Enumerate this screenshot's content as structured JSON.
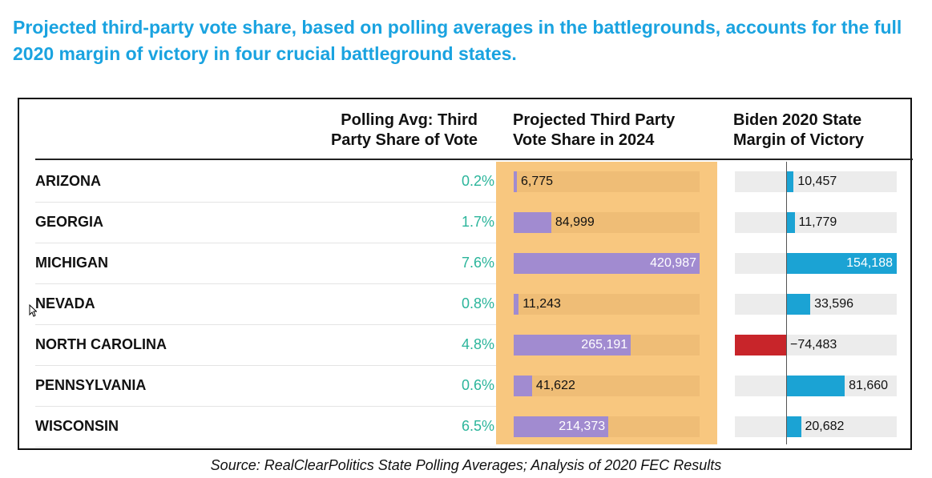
{
  "headline": "Projected third-party vote share, based on polling averages in the battlegrounds, accounts for the full 2020 margin of victory in four crucial battleground states.",
  "source": "Source: RealClearPolitics State Polling Averages; Analysis of 2020 FEC Results",
  "colors": {
    "headline": "#1aa3e0",
    "percent_text": "#2bb59b",
    "projected_bar": "#a18bd0",
    "projected_track": "#efbd76",
    "highlight_column": "#f8c77f",
    "margin_positive": "#1ba3d4",
    "margin_negative": "#c8252a",
    "margin_track": "#ececec"
  },
  "chart_data": {
    "type": "table",
    "columns": [
      {
        "key": "state",
        "label_lines": [
          "",
          ""
        ]
      },
      {
        "key": "polling_avg",
        "label_lines": [
          "Polling Avg: Third",
          "Party Share of Vote"
        ]
      },
      {
        "key": "projected",
        "label_lines": [
          "Projected Third Party",
          "Vote Share in 2024"
        ]
      },
      {
        "key": "margin",
        "label_lines": [
          "Biden 2020 State",
          "Margin of Victory"
        ]
      }
    ],
    "rows": [
      {
        "state": "ARIZONA",
        "polling_avg": "0.2%",
        "projected": 6775,
        "projected_label": "6,775",
        "margin": 10457,
        "margin_label": "10,457"
      },
      {
        "state": "GEORGIA",
        "polling_avg": "1.7%",
        "projected": 84999,
        "projected_label": "84,999",
        "margin": 11779,
        "margin_label": "11,779"
      },
      {
        "state": "MICHIGAN",
        "polling_avg": "7.6%",
        "projected": 420987,
        "projected_label": "420,987",
        "margin": 154188,
        "margin_label": "154,188"
      },
      {
        "state": "NEVADA",
        "polling_avg": "0.8%",
        "projected": 11243,
        "projected_label": "11,243",
        "margin": 33596,
        "margin_label": "33,596"
      },
      {
        "state": "NORTH CAROLINA",
        "polling_avg": "4.8%",
        "projected": 265191,
        "projected_label": "265,191",
        "margin": -74483,
        "margin_label": "−74,483"
      },
      {
        "state": "PENNSYLVANIA",
        "polling_avg": "0.6%",
        "projected": 41622,
        "projected_label": "41,622",
        "margin": 81660,
        "margin_label": "81,660"
      },
      {
        "state": "WISCONSIN",
        "polling_avg": "6.5%",
        "projected": 214373,
        "projected_label": "214,373",
        "margin": 20682,
        "margin_label": "20,682"
      }
    ],
    "projected_scale_max": 420987,
    "margin_scale": [
      -74483,
      154188
    ]
  }
}
